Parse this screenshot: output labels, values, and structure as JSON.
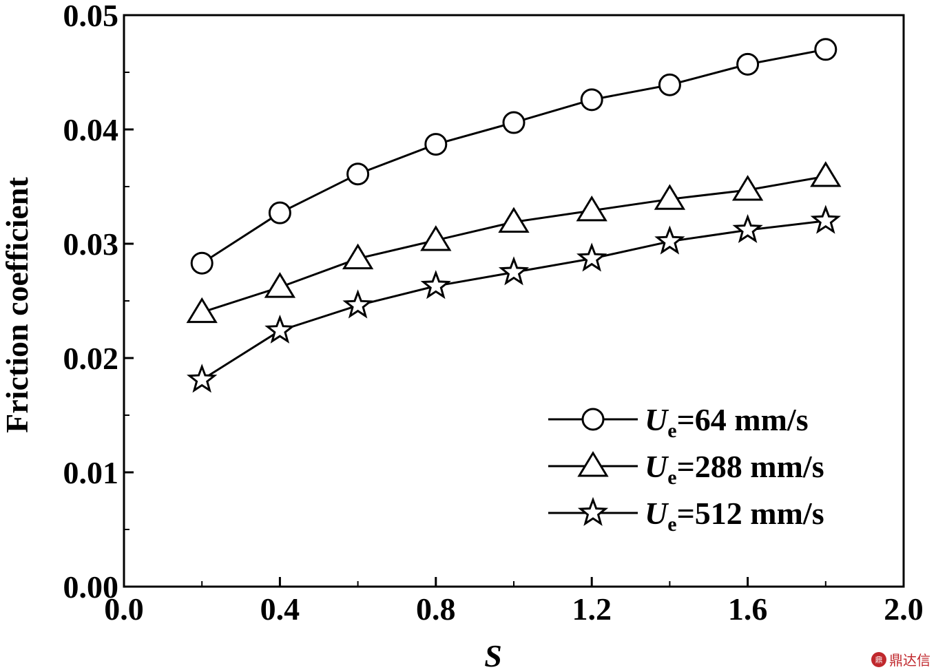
{
  "chart_data": {
    "type": "line",
    "title": "",
    "xlabel": "S",
    "ylabel": "Friction coefficient",
    "xlim": [
      0.0,
      2.0
    ],
    "ylim": [
      0.0,
      0.05
    ],
    "x_ticks": [
      "0.0",
      "0.4",
      "0.8",
      "1.2",
      "1.6",
      "2.0"
    ],
    "y_ticks": [
      "0.00",
      "0.01",
      "0.02",
      "0.03",
      "0.04",
      "0.05"
    ],
    "x": [
      0.2,
      0.4,
      0.6,
      0.8,
      1.0,
      1.2,
      1.4,
      1.6,
      1.8
    ],
    "series": [
      {
        "name": "Ue=64 mm/s",
        "label_var": "U",
        "label_sub": "e",
        "label_rest": "=64 mm/s",
        "marker": "circle",
        "values": [
          0.0283,
          0.0327,
          0.0361,
          0.0387,
          0.0406,
          0.0426,
          0.0439,
          0.0457,
          0.047
        ]
      },
      {
        "name": "Ue=288 mm/s",
        "label_var": "U",
        "label_sub": "e",
        "label_rest": "=288 mm/s",
        "marker": "triangle",
        "values": [
          0.024,
          0.0262,
          0.0287,
          0.0303,
          0.0319,
          0.0329,
          0.0339,
          0.0347,
          0.0359
        ]
      },
      {
        "name": "Ue=512 mm/s",
        "label_var": "U",
        "label_sub": "e",
        "label_rest": "=512 mm/s",
        "marker": "star",
        "values": [
          0.0181,
          0.0224,
          0.0246,
          0.0263,
          0.0275,
          0.0287,
          0.0302,
          0.0312,
          0.032
        ]
      }
    ],
    "legend_position": "bottom-right"
  },
  "watermark": {
    "logo": "鼎",
    "text": "鼎达信"
  },
  "colors": {
    "line": "#000000",
    "background": "#ffffff",
    "watermark": "#c0282d"
  }
}
